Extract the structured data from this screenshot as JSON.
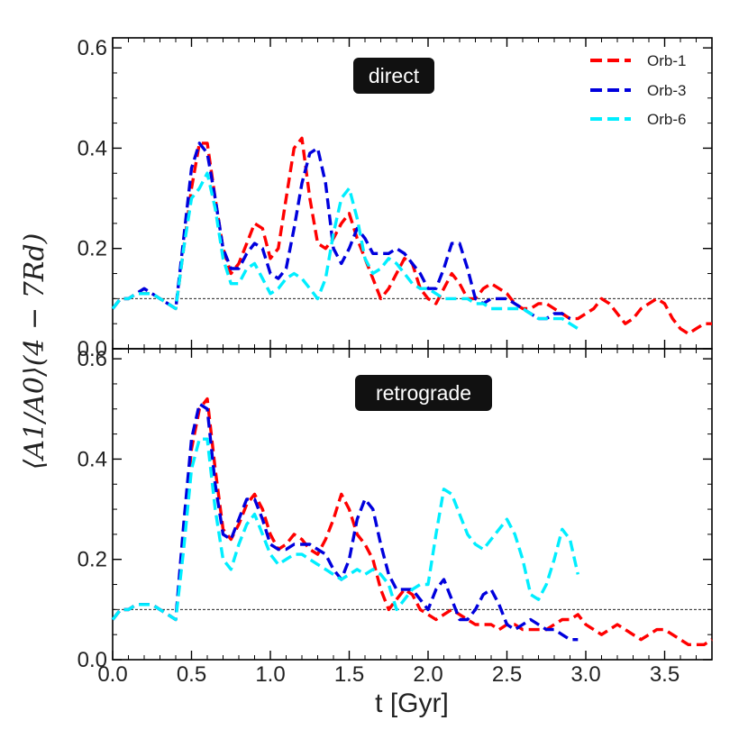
{
  "chart_data": [
    {
      "type": "line",
      "panel": "top",
      "title": "direct",
      "xlabel": "t [Gyr]",
      "ylabel": "⟨A1/A0⟩(4 − 7Rd)",
      "xlim": [
        0.0,
        3.8
      ],
      "ylim": [
        0.0,
        0.62
      ],
      "xticks": [
        "0.0",
        "0.5",
        "1.0",
        "1.5",
        "2.0",
        "2.5",
        "3.0",
        "3.5"
      ],
      "yticks": [
        "0.0",
        "0.2",
        "0.4",
        "0.6"
      ],
      "reference_line": 0.1,
      "legend_position": "top-right",
      "series": [
        {
          "name": "Orb-1",
          "color": "#ff0000",
          "x": [
            0.0,
            0.05,
            0.1,
            0.15,
            0.2,
            0.25,
            0.3,
            0.35,
            0.4,
            0.45,
            0.5,
            0.55,
            0.6,
            0.65,
            0.7,
            0.75,
            0.8,
            0.85,
            0.9,
            0.95,
            1.0,
            1.05,
            1.1,
            1.15,
            1.2,
            1.25,
            1.3,
            1.35,
            1.4,
            1.45,
            1.5,
            1.55,
            1.6,
            1.65,
            1.7,
            1.75,
            1.8,
            1.85,
            1.9,
            1.95,
            2.0,
            2.05,
            2.1,
            2.15,
            2.2,
            2.25,
            2.3,
            2.35,
            2.4,
            2.45,
            2.5,
            2.55,
            2.6,
            2.65,
            2.7,
            2.75,
            2.8,
            2.85,
            2.9,
            2.95,
            3.0,
            3.05,
            3.1,
            3.15,
            3.2,
            3.25,
            3.3,
            3.35,
            3.4,
            3.45,
            3.5,
            3.55,
            3.6,
            3.65,
            3.7,
            3.75,
            3.8
          ],
          "values": [
            0.08,
            0.1,
            0.1,
            0.11,
            0.11,
            0.11,
            0.1,
            0.09,
            0.08,
            0.2,
            0.32,
            0.41,
            0.41,
            0.3,
            0.2,
            0.15,
            0.17,
            0.21,
            0.25,
            0.24,
            0.18,
            0.2,
            0.3,
            0.4,
            0.42,
            0.3,
            0.21,
            0.2,
            0.22,
            0.25,
            0.27,
            0.22,
            0.18,
            0.14,
            0.1,
            0.12,
            0.15,
            0.18,
            0.17,
            0.12,
            0.1,
            0.09,
            0.12,
            0.15,
            0.13,
            0.1,
            0.1,
            0.12,
            0.13,
            0.12,
            0.11,
            0.09,
            0.08,
            0.08,
            0.09,
            0.09,
            0.08,
            0.07,
            0.06,
            0.06,
            0.07,
            0.08,
            0.1,
            0.09,
            0.07,
            0.05,
            0.06,
            0.08,
            0.09,
            0.1,
            0.09,
            0.06,
            0.04,
            0.03,
            0.04,
            0.05,
            0.05
          ]
        },
        {
          "name": "Orb-3",
          "color": "#0000dd",
          "x": [
            0.0,
            0.05,
            0.1,
            0.15,
            0.2,
            0.25,
            0.3,
            0.35,
            0.4,
            0.45,
            0.5,
            0.55,
            0.6,
            0.65,
            0.7,
            0.75,
            0.8,
            0.85,
            0.9,
            0.95,
            1.0,
            1.05,
            1.1,
            1.15,
            1.2,
            1.25,
            1.3,
            1.35,
            1.4,
            1.45,
            1.5,
            1.55,
            1.6,
            1.65,
            1.7,
            1.75,
            1.8,
            1.85,
            1.9,
            1.95,
            2.0,
            2.05,
            2.1,
            2.15,
            2.2,
            2.25,
            2.3,
            2.35,
            2.4,
            2.45,
            2.5,
            2.55,
            2.6,
            2.65,
            2.7,
            2.75,
            2.8,
            2.85,
            2.9
          ],
          "values": [
            0.08,
            0.1,
            0.1,
            0.11,
            0.12,
            0.11,
            0.1,
            0.09,
            0.08,
            0.22,
            0.36,
            0.41,
            0.39,
            0.3,
            0.2,
            0.16,
            0.16,
            0.19,
            0.21,
            0.2,
            0.15,
            0.14,
            0.16,
            0.24,
            0.33,
            0.39,
            0.4,
            0.33,
            0.2,
            0.17,
            0.2,
            0.24,
            0.22,
            0.19,
            0.19,
            0.19,
            0.2,
            0.19,
            0.17,
            0.15,
            0.12,
            0.12,
            0.16,
            0.21,
            0.21,
            0.16,
            0.1,
            0.09,
            0.1,
            0.1,
            0.1,
            0.09,
            0.08,
            0.07,
            0.06,
            0.06,
            0.07,
            0.07,
            0.06
          ]
        },
        {
          "name": "Orb-6",
          "color": "#00eeff",
          "x": [
            0.0,
            0.05,
            0.1,
            0.15,
            0.2,
            0.25,
            0.3,
            0.35,
            0.4,
            0.45,
            0.5,
            0.55,
            0.6,
            0.65,
            0.7,
            0.75,
            0.8,
            0.85,
            0.9,
            0.95,
            1.0,
            1.05,
            1.1,
            1.15,
            1.2,
            1.25,
            1.3,
            1.35,
            1.4,
            1.45,
            1.5,
            1.55,
            1.6,
            1.65,
            1.7,
            1.75,
            1.8,
            1.85,
            1.9,
            1.95,
            2.0,
            2.05,
            2.1,
            2.15,
            2.2,
            2.25,
            2.3,
            2.35,
            2.4,
            2.45,
            2.5,
            2.55,
            2.6,
            2.65,
            2.7,
            2.75,
            2.8,
            2.85,
            2.9,
            2.95
          ],
          "values": [
            0.08,
            0.1,
            0.1,
            0.11,
            0.11,
            0.11,
            0.1,
            0.09,
            0.08,
            0.2,
            0.3,
            0.32,
            0.35,
            0.28,
            0.18,
            0.13,
            0.13,
            0.16,
            0.17,
            0.14,
            0.11,
            0.12,
            0.14,
            0.15,
            0.14,
            0.12,
            0.1,
            0.14,
            0.23,
            0.3,
            0.32,
            0.26,
            0.18,
            0.15,
            0.16,
            0.18,
            0.17,
            0.15,
            0.13,
            0.12,
            0.12,
            0.11,
            0.1,
            0.1,
            0.1,
            0.1,
            0.09,
            0.09,
            0.08,
            0.08,
            0.08,
            0.08,
            0.08,
            0.07,
            0.06,
            0.06,
            0.06,
            0.06,
            0.05,
            0.04
          ]
        }
      ]
    },
    {
      "type": "line",
      "panel": "bottom",
      "title": "retrograde",
      "xlabel": "t [Gyr]",
      "ylabel": "⟨A1/A0⟩(4 − 7Rd)",
      "xlim": [
        0.0,
        3.8
      ],
      "ylim": [
        0.0,
        0.62
      ],
      "xticks": [
        "0.0",
        "0.5",
        "1.0",
        "1.5",
        "2.0",
        "2.5",
        "3.0",
        "3.5"
      ],
      "yticks": [
        "0.0",
        "0.2",
        "0.4",
        "0.6"
      ],
      "reference_line": 0.1,
      "series": [
        {
          "name": "Orb-1",
          "color": "#ff0000",
          "x": [
            0.0,
            0.05,
            0.1,
            0.15,
            0.2,
            0.25,
            0.3,
            0.35,
            0.4,
            0.45,
            0.5,
            0.55,
            0.6,
            0.65,
            0.7,
            0.75,
            0.8,
            0.85,
            0.9,
            0.95,
            1.0,
            1.05,
            1.1,
            1.15,
            1.2,
            1.25,
            1.3,
            1.35,
            1.4,
            1.45,
            1.5,
            1.55,
            1.6,
            1.65,
            1.7,
            1.75,
            1.8,
            1.85,
            1.9,
            1.95,
            2.0,
            2.05,
            2.1,
            2.15,
            2.2,
            2.25,
            2.3,
            2.35,
            2.4,
            2.45,
            2.5,
            2.55,
            2.6,
            2.65,
            2.7,
            2.75,
            2.8,
            2.85,
            2.9,
            2.95,
            3.0,
            3.05,
            3.1,
            3.15,
            3.2,
            3.25,
            3.3,
            3.35,
            3.4,
            3.45,
            3.5,
            3.55,
            3.6,
            3.65,
            3.7,
            3.75,
            3.8
          ],
          "values": [
            0.08,
            0.1,
            0.1,
            0.11,
            0.11,
            0.11,
            0.1,
            0.09,
            0.08,
            0.25,
            0.42,
            0.5,
            0.52,
            0.38,
            0.26,
            0.24,
            0.27,
            0.31,
            0.33,
            0.3,
            0.25,
            0.22,
            0.23,
            0.25,
            0.24,
            0.22,
            0.21,
            0.24,
            0.28,
            0.33,
            0.3,
            0.25,
            0.23,
            0.2,
            0.14,
            0.1,
            0.12,
            0.14,
            0.13,
            0.1,
            0.09,
            0.08,
            0.09,
            0.1,
            0.09,
            0.08,
            0.07,
            0.07,
            0.07,
            0.06,
            0.07,
            0.07,
            0.06,
            0.06,
            0.06,
            0.06,
            0.07,
            0.08,
            0.08,
            0.09,
            0.07,
            0.06,
            0.05,
            0.06,
            0.07,
            0.06,
            0.05,
            0.04,
            0.05,
            0.06,
            0.06,
            0.05,
            0.04,
            0.03,
            0.03,
            0.03,
            0.04
          ]
        },
        {
          "name": "Orb-3",
          "color": "#0000dd",
          "x": [
            0.0,
            0.05,
            0.1,
            0.15,
            0.2,
            0.25,
            0.3,
            0.35,
            0.4,
            0.45,
            0.5,
            0.55,
            0.6,
            0.65,
            0.7,
            0.75,
            0.8,
            0.85,
            0.9,
            0.95,
            1.0,
            1.05,
            1.1,
            1.15,
            1.2,
            1.25,
            1.3,
            1.35,
            1.4,
            1.45,
            1.5,
            1.55,
            1.6,
            1.65,
            1.7,
            1.75,
            1.8,
            1.85,
            1.9,
            1.95,
            2.0,
            2.05,
            2.1,
            2.15,
            2.2,
            2.25,
            2.3,
            2.35,
            2.4,
            2.45,
            2.5,
            2.55,
            2.6,
            2.65,
            2.7,
            2.75,
            2.8,
            2.85,
            2.9,
            2.95
          ],
          "values": [
            0.08,
            0.1,
            0.1,
            0.11,
            0.11,
            0.11,
            0.1,
            0.09,
            0.08,
            0.27,
            0.44,
            0.51,
            0.5,
            0.35,
            0.25,
            0.24,
            0.28,
            0.32,
            0.32,
            0.28,
            0.23,
            0.22,
            0.22,
            0.23,
            0.23,
            0.23,
            0.22,
            0.21,
            0.18,
            0.16,
            0.2,
            0.28,
            0.32,
            0.3,
            0.23,
            0.17,
            0.14,
            0.14,
            0.14,
            0.12,
            0.1,
            0.14,
            0.16,
            0.12,
            0.08,
            0.08,
            0.1,
            0.13,
            0.14,
            0.11,
            0.07,
            0.06,
            0.07,
            0.08,
            0.07,
            0.06,
            0.06,
            0.05,
            0.04,
            0.04
          ]
        },
        {
          "name": "Orb-6",
          "color": "#00eeff",
          "x": [
            0.0,
            0.05,
            0.1,
            0.15,
            0.2,
            0.25,
            0.3,
            0.35,
            0.4,
            0.45,
            0.5,
            0.55,
            0.6,
            0.65,
            0.7,
            0.75,
            0.8,
            0.85,
            0.9,
            0.95,
            1.0,
            1.05,
            1.1,
            1.15,
            1.2,
            1.25,
            1.3,
            1.35,
            1.4,
            1.45,
            1.5,
            1.55,
            1.6,
            1.65,
            1.7,
            1.75,
            1.8,
            1.85,
            1.9,
            1.95,
            2.0,
            2.05,
            2.1,
            2.15,
            2.2,
            2.25,
            2.3,
            2.35,
            2.4,
            2.45,
            2.5,
            2.55,
            2.6,
            2.65,
            2.7,
            2.75,
            2.8,
            2.85,
            2.9,
            2.95
          ],
          "values": [
            0.08,
            0.1,
            0.1,
            0.11,
            0.11,
            0.11,
            0.1,
            0.09,
            0.08,
            0.22,
            0.38,
            0.44,
            0.44,
            0.3,
            0.2,
            0.18,
            0.23,
            0.27,
            0.29,
            0.25,
            0.21,
            0.19,
            0.2,
            0.21,
            0.21,
            0.2,
            0.19,
            0.18,
            0.17,
            0.16,
            0.17,
            0.18,
            0.17,
            0.18,
            0.17,
            0.15,
            0.1,
            0.12,
            0.14,
            0.15,
            0.15,
            0.25,
            0.34,
            0.33,
            0.29,
            0.25,
            0.23,
            0.22,
            0.24,
            0.26,
            0.28,
            0.25,
            0.2,
            0.13,
            0.12,
            0.15,
            0.2,
            0.26,
            0.24,
            0.17
          ]
        }
      ]
    }
  ]
}
